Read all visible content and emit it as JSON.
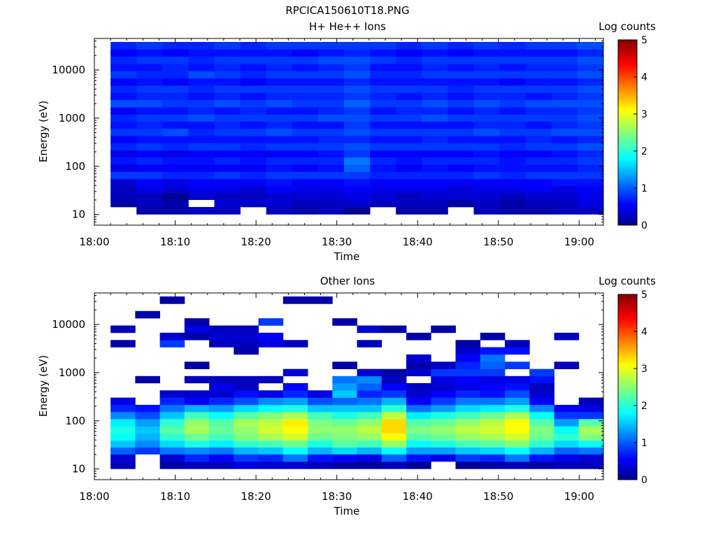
{
  "figure": {
    "title": "RPCICA150610T18.PNG"
  },
  "colorbar": {
    "label": "Log counts",
    "range": [
      0,
      5
    ],
    "ticks": [
      "0",
      "1",
      "2",
      "3",
      "4",
      "5"
    ],
    "colormap": "jet"
  },
  "chart_data": [
    {
      "type": "heatmap",
      "title": "H+ He++ Ions",
      "xlabel": "Time",
      "ylabel": "Energy (eV)",
      "x_ticks": [
        "18:00",
        "18:10",
        "18:20",
        "18:30",
        "18:40",
        "18:50",
        "19:00"
      ],
      "y_ticks": [
        "10",
        "100",
        "1000",
        "10000"
      ],
      "y_scale": "log",
      "y_range_eV": [
        6,
        45000
      ],
      "time_range": [
        "18:00",
        "19:03"
      ],
      "data_start": "18:02",
      "energy_bins_eV": [
        12,
        17,
        24,
        33,
        46,
        65,
        92,
        130,
        180,
        255,
        360,
        510,
        720,
        1000,
        1420,
        2000,
        2850,
        4000,
        5650,
        8000,
        11300,
        16000,
        22600,
        32000
      ],
      "log_counts": [
        [
          null,
          0.2,
          0.3,
          0.3,
          0.4,
          0.9,
          0.5,
          0.7,
          0.5,
          0.8,
          0.6,
          0.9,
          0.7,
          0.8,
          0.6,
          1.0,
          0.7,
          0.8,
          0.6,
          0.9,
          0.7,
          0.8,
          0.6,
          0.8
        ],
        [
          0.2,
          0.3,
          0.3,
          0.5,
          0.6,
          0.9,
          0.6,
          0.8,
          0.6,
          0.9,
          0.7,
          0.9,
          0.8,
          0.9,
          0.7,
          1.0,
          0.8,
          0.9,
          0.7,
          0.8,
          0.7,
          0.9,
          0.7,
          0.9
        ],
        [
          0.2,
          0.2,
          0.1,
          0.4,
          0.5,
          0.8,
          0.6,
          0.7,
          0.5,
          0.8,
          0.7,
          1.0,
          0.7,
          0.9,
          0.7,
          0.9,
          0.8,
          0.9,
          0.6,
          0.8,
          0.8,
          0.9,
          0.6,
          0.8
        ],
        [
          0.3,
          null,
          0.4,
          0.5,
          0.6,
          0.8,
          0.6,
          0.7,
          0.6,
          0.9,
          0.7,
          0.8,
          0.7,
          1.0,
          0.8,
          0.9,
          0.7,
          0.8,
          0.7,
          1.0,
          0.7,
          0.8,
          0.7,
          0.8
        ],
        [
          0.3,
          0.4,
          0.3,
          0.5,
          0.6,
          0.9,
          0.6,
          0.8,
          0.6,
          0.9,
          0.7,
          0.9,
          0.8,
          0.9,
          0.7,
          1.0,
          0.8,
          0.9,
          0.7,
          0.9,
          0.8,
          0.9,
          0.7,
          0.9
        ],
        [
          null,
          0.4,
          0.3,
          0.4,
          0.6,
          0.8,
          0.6,
          0.7,
          0.6,
          0.8,
          0.7,
          0.9,
          0.7,
          0.9,
          0.8,
          0.9,
          0.7,
          0.9,
          0.6,
          0.8,
          0.7,
          0.9,
          0.7,
          0.8
        ],
        [
          0.3,
          0.4,
          0.4,
          0.6,
          0.7,
          0.9,
          0.7,
          0.8,
          0.6,
          0.9,
          0.7,
          1.0,
          0.8,
          0.9,
          0.7,
          1.0,
          0.8,
          0.9,
          0.7,
          0.9,
          0.8,
          0.9,
          0.7,
          0.9
        ],
        [
          0.2,
          0.3,
          0.4,
          0.5,
          0.6,
          0.9,
          0.6,
          0.8,
          0.6,
          0.9,
          0.7,
          0.9,
          0.7,
          0.9,
          0.7,
          0.9,
          0.8,
          0.9,
          0.7,
          0.9,
          0.7,
          0.9,
          0.6,
          0.9
        ],
        [
          0.3,
          0.3,
          0.4,
          0.5,
          0.6,
          0.9,
          0.7,
          0.8,
          0.7,
          0.9,
          0.8,
          0.9,
          0.7,
          1.0,
          0.8,
          0.9,
          0.8,
          0.9,
          0.7,
          0.9,
          0.8,
          1.0,
          0.7,
          0.9
        ],
        [
          0.1,
          0.4,
          0.5,
          0.6,
          0.7,
          0.9,
          1.1,
          1.2,
          0.9,
          1.0,
          0.8,
          1.0,
          0.9,
          1.0,
          0.9,
          1.1,
          0.9,
          1.0,
          0.8,
          1.0,
          0.9,
          1.0,
          0.8,
          0.9
        ],
        [
          null,
          0.3,
          0.4,
          0.5,
          0.6,
          0.8,
          0.7,
          0.8,
          0.6,
          0.9,
          0.7,
          0.9,
          0.7,
          0.9,
          0.7,
          0.9,
          0.8,
          0.9,
          0.7,
          0.8,
          0.7,
          0.9,
          0.7,
          0.9
        ],
        [
          0.2,
          0.3,
          0.3,
          0.5,
          0.6,
          0.8,
          0.6,
          0.7,
          0.6,
          0.9,
          0.7,
          0.9,
          0.7,
          0.9,
          0.8,
          0.9,
          0.7,
          0.9,
          0.7,
          0.8,
          0.7,
          0.8,
          0.6,
          0.8
        ],
        [
          0.2,
          0.3,
          0.4,
          0.5,
          0.6,
          0.8,
          0.7,
          0.8,
          0.6,
          0.9,
          0.8,
          0.9,
          0.7,
          1.0,
          0.8,
          1.0,
          0.8,
          0.9,
          0.7,
          0.9,
          0.8,
          0.9,
          0.7,
          0.9
        ],
        [
          null,
          0.2,
          0.4,
          0.4,
          0.6,
          0.8,
          0.6,
          0.8,
          0.6,
          0.9,
          0.7,
          0.9,
          0.7,
          0.9,
          0.7,
          0.9,
          0.7,
          0.8,
          0.7,
          0.9,
          0.7,
          0.9,
          0.6,
          0.8
        ],
        [
          0.3,
          0.3,
          0.4,
          0.5,
          0.6,
          0.9,
          0.7,
          0.8,
          0.7,
          0.9,
          0.7,
          1.0,
          0.8,
          0.9,
          0.8,
          1.0,
          0.8,
          0.9,
          0.7,
          0.9,
          0.8,
          0.9,
          0.7,
          0.9
        ],
        [
          0.2,
          0.2,
          0.3,
          0.5,
          0.6,
          0.8,
          0.7,
          0.7,
          0.6,
          0.8,
          0.7,
          0.9,
          0.8,
          0.9,
          0.7,
          0.9,
          0.8,
          0.9,
          0.6,
          0.9,
          0.7,
          0.9,
          0.7,
          0.8
        ],
        [
          0.2,
          0.3,
          0.4,
          0.6,
          0.6,
          0.9,
          0.7,
          0.8,
          0.6,
          0.9,
          0.8,
          0.9,
          0.7,
          0.9,
          0.8,
          1.0,
          0.7,
          0.9,
          0.7,
          0.9,
          0.8,
          0.9,
          0.7,
          0.9
        ],
        [
          0.3,
          0.3,
          0.4,
          0.5,
          0.7,
          0.9,
          0.7,
          0.8,
          0.7,
          0.9,
          0.7,
          1.0,
          0.8,
          0.9,
          0.8,
          1.0,
          0.8,
          0.9,
          0.7,
          0.9,
          0.8,
          0.9,
          0.7,
          0.9
        ],
        [
          0.3,
          0.5,
          0.5,
          0.6,
          0.7,
          0.9,
          0.8,
          0.9,
          0.8,
          1.0,
          0.8,
          1.0,
          0.9,
          1.0,
          0.9,
          1.0,
          0.9,
          1.0,
          0.8,
          1.0,
          0.9,
          1.0,
          0.8,
          1.0
        ]
      ]
    },
    {
      "type": "heatmap",
      "title": "Other Ions",
      "xlabel": "Time",
      "ylabel": "Energy (eV)",
      "x_ticks": [
        "18:00",
        "18:10",
        "18:20",
        "18:30",
        "18:40",
        "18:50",
        "19:00"
      ],
      "y_ticks": [
        "10",
        "100",
        "1000",
        "10000"
      ],
      "y_scale": "log",
      "y_range_eV": [
        6,
        45000
      ],
      "time_range": [
        "18:00",
        "19:03"
      ],
      "data_start": "18:02",
      "energy_bins_eV": [
        12,
        17,
        24,
        33,
        46,
        65,
        92,
        130,
        180,
        255,
        360,
        510,
        720,
        1000,
        1420,
        2000,
        2850,
        4000,
        5650,
        8000,
        11300,
        16000,
        22600,
        32000
      ],
      "log_counts": [
        [
          0.3,
          0.4,
          1.1,
          1.6,
          1.9,
          2.0,
          1.8,
          1.3,
          0.8,
          0.5,
          null,
          null,
          null,
          null,
          null,
          null,
          null,
          0.2,
          null,
          0.3,
          null,
          null,
          null,
          null
        ],
        [
          null,
          null,
          0.9,
          1.3,
          1.5,
          1.6,
          1.4,
          1.0,
          0.7,
          null,
          null,
          null,
          0.2,
          null,
          null,
          null,
          null,
          null,
          null,
          null,
          null,
          0.2,
          null,
          null
        ],
        [
          0.2,
          0.4,
          1.2,
          1.7,
          2.1,
          2.3,
          2.1,
          1.6,
          1.2,
          0.8,
          0.4,
          null,
          null,
          null,
          null,
          null,
          null,
          0.9,
          0.4,
          null,
          null,
          null,
          null,
          0.2
        ],
        [
          0.3,
          0.8,
          1.3,
          2.0,
          2.4,
          2.7,
          2.6,
          2.2,
          1.5,
          0.6,
          0.4,
          null,
          0.3,
          null,
          0.2,
          null,
          null,
          null,
          0.2,
          0.5,
          0.2,
          null,
          null,
          null
        ],
        [
          0.3,
          0.6,
          1.2,
          1.8,
          2.2,
          2.4,
          2.3,
          1.9,
          1.4,
          0.8,
          0.4,
          0.5,
          0.3,
          null,
          null,
          null,
          null,
          0.3,
          0.4,
          0.3,
          null,
          null,
          null,
          null
        ],
        [
          0.5,
          0.9,
          1.5,
          2.1,
          2.5,
          2.6,
          2.7,
          2.3,
          1.7,
          1.0,
          0.7,
          0.3,
          0.3,
          null,
          null,
          null,
          0.2,
          0.3,
          0.4,
          0.3,
          null,
          null,
          null,
          null
        ],
        [
          0.4,
          0.8,
          1.6,
          2.2,
          2.7,
          2.9,
          2.8,
          2.5,
          1.9,
          1.3,
          0.5,
          null,
          0.3,
          null,
          null,
          null,
          null,
          0.5,
          0.6,
          null,
          0.9,
          null,
          null,
          null
        ],
        [
          0.4,
          1.2,
          1.9,
          2.4,
          2.9,
          3.1,
          3.2,
          2.7,
          2.0,
          1.4,
          0.8,
          0.6,
          null,
          0.4,
          null,
          null,
          null,
          0.3,
          null,
          null,
          null,
          null,
          null,
          0.2
        ],
        [
          0.3,
          0.7,
          1.5,
          2.0,
          2.4,
          2.6,
          2.5,
          2.2,
          1.6,
          1.0,
          0.5,
          null,
          null,
          null,
          null,
          null,
          null,
          null,
          null,
          null,
          null,
          null,
          null,
          0.2
        ],
        [
          0.2,
          0.6,
          1.7,
          2.3,
          2.5,
          2.6,
          2.4,
          2.0,
          1.6,
          1.1,
          1.6,
          1.4,
          1.2,
          null,
          0.2,
          null,
          null,
          null,
          null,
          null,
          0.2,
          null,
          null,
          null
        ],
        [
          0.2,
          0.5,
          1.5,
          2.2,
          2.6,
          2.8,
          2.6,
          2.2,
          1.6,
          1.2,
          0.8,
          1.1,
          1.3,
          0.4,
          null,
          null,
          null,
          0.3,
          null,
          0.4,
          null,
          null,
          null,
          null
        ],
        [
          0.3,
          1.1,
          1.9,
          2.6,
          3.1,
          3.3,
          3.3,
          2.8,
          2.1,
          1.5,
          0.9,
          0.6,
          0.3,
          0.2,
          null,
          null,
          null,
          null,
          null,
          0.2,
          null,
          null,
          null,
          null
        ],
        [
          0.1,
          0.7,
          1.4,
          1.9,
          2.3,
          2.5,
          2.3,
          1.8,
          1.2,
          0.6,
          0.4,
          0.3,
          null,
          0.4,
          0.2,
          0.4,
          null,
          null,
          0.2,
          null,
          null,
          null,
          null,
          null
        ],
        [
          null,
          0.5,
          1.4,
          2.0,
          2.4,
          2.6,
          2.4,
          2.0,
          1.4,
          0.9,
          0.6,
          0.4,
          0.5,
          0.9,
          0.3,
          null,
          null,
          null,
          null,
          0.2,
          null,
          null,
          null,
          null
        ],
        [
          0.1,
          0.9,
          1.6,
          2.2,
          2.6,
          2.8,
          2.6,
          2.2,
          1.7,
          1.2,
          0.8,
          0.5,
          0.6,
          0.9,
          0.8,
          0.6,
          0.4,
          0.2,
          null,
          null,
          null,
          null,
          null,
          null
        ],
        [
          0.2,
          0.8,
          1.7,
          2.3,
          2.7,
          2.9,
          2.8,
          2.4,
          1.8,
          1.2,
          0.7,
          0.6,
          0.5,
          0.9,
          1.1,
          1.2,
          0.7,
          null,
          0.2,
          null,
          null,
          null,
          null,
          null
        ],
        [
          0.3,
          1.2,
          1.9,
          2.5,
          2.9,
          3.1,
          3.1,
          2.7,
          2.0,
          1.4,
          1.0,
          0.7,
          0.5,
          null,
          0.9,
          null,
          0.7,
          0.3,
          null,
          null,
          null,
          null,
          null,
          null
        ],
        [
          0.2,
          0.7,
          1.5,
          2.1,
          2.4,
          2.5,
          2.3,
          1.9,
          1.3,
          0.6,
          0.4,
          0.3,
          0.7,
          0.9,
          null,
          null,
          null,
          null,
          null,
          null,
          null,
          null,
          null,
          null
        ],
        [
          0.3,
          0.5,
          1.1,
          1.7,
          2.1,
          1.9,
          1.4,
          0.9,
          0.6,
          null,
          null,
          null,
          null,
          null,
          0.3,
          null,
          null,
          null,
          0.3,
          null,
          null,
          null,
          null,
          null
        ],
        [
          0.3,
          0.4,
          1.2,
          1.9,
          2.5,
          2.7,
          2.3,
          0.9,
          0.5,
          0.3,
          null,
          null,
          null,
          null,
          null,
          null,
          null,
          null,
          null,
          null,
          null,
          null,
          null,
          null
        ]
      ]
    }
  ]
}
